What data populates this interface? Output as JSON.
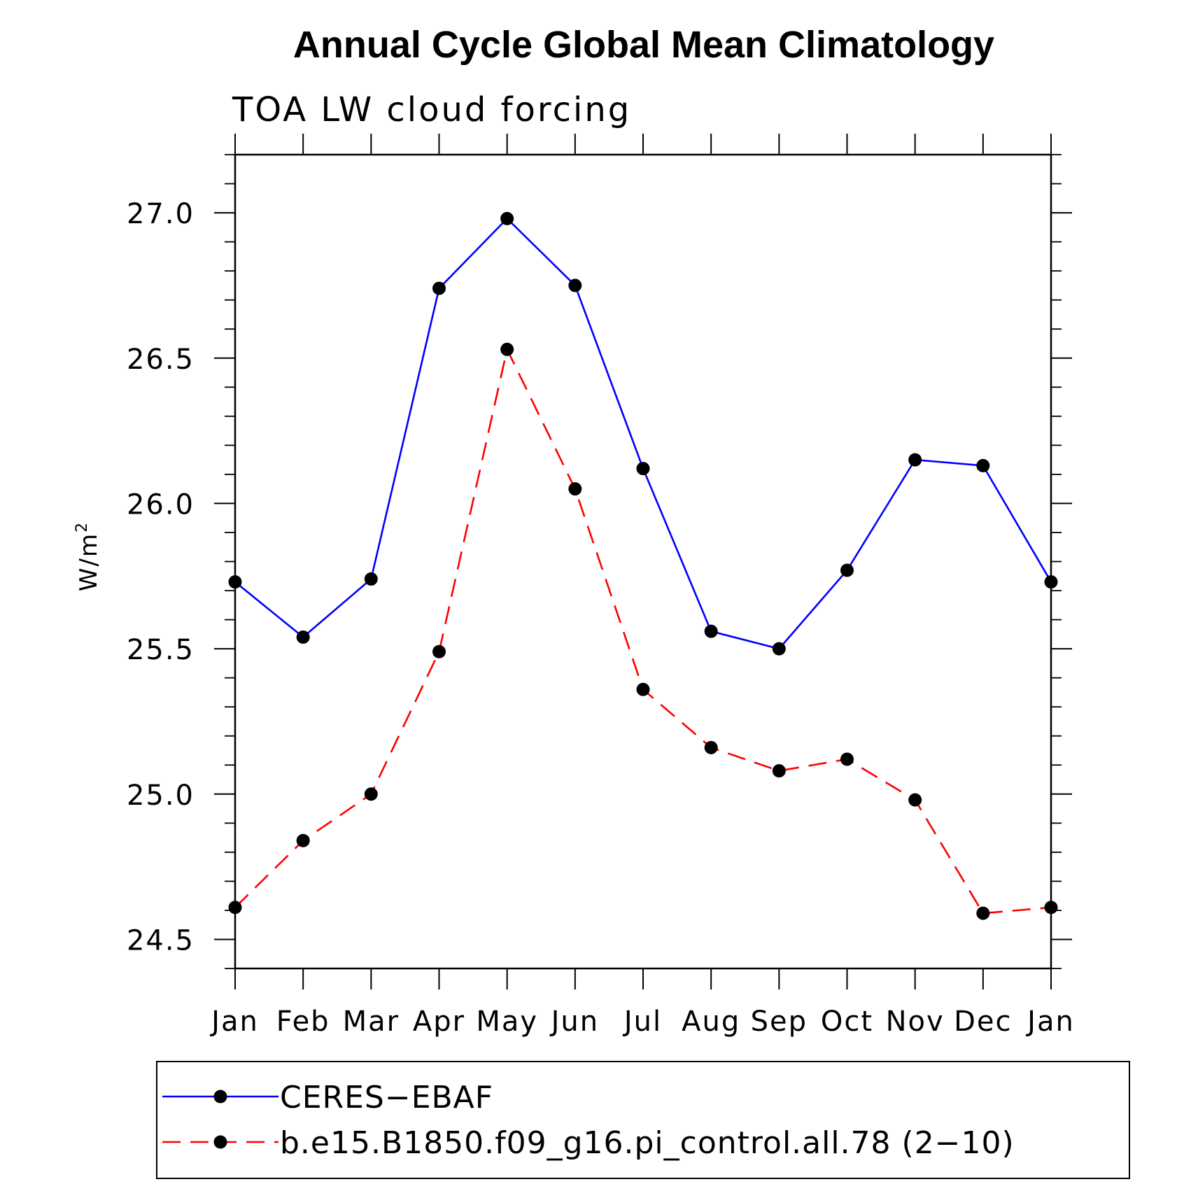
{
  "chart_data": {
    "type": "line",
    "title": "Annual Cycle Global Mean Climatology",
    "subtitle": "TOA LW cloud forcing",
    "ylabel": "W/m",
    "ylabel_sup": "2",
    "xlabel": "",
    "categories": [
      "Jan",
      "Feb",
      "Mar",
      "Apr",
      "May",
      "Jun",
      "Jul",
      "Aug",
      "Sep",
      "Oct",
      "Nov",
      "Dec",
      "Jan"
    ],
    "ylim": [
      24.4,
      27.2
    ],
    "yticks": [
      "24.5",
      "25.0",
      "25.5",
      "26.0",
      "26.5",
      "27.0"
    ],
    "grid": false,
    "legend_position": "bottom",
    "series": [
      {
        "name": "CERES−EBAF",
        "color": "#0000ff",
        "dash": "solid",
        "marker": "filled-circle",
        "values": [
          25.73,
          25.54,
          25.74,
          26.74,
          26.98,
          26.75,
          26.12,
          25.56,
          25.5,
          25.77,
          26.15,
          26.13,
          25.73
        ]
      },
      {
        "name": "b.e15.B1850.f09_g16.pi_control.all.78 (2−10)",
        "color": "#ff0000",
        "dash": "dashed",
        "marker": "filled-circle",
        "values": [
          24.61,
          24.84,
          25.0,
          25.49,
          26.53,
          26.05,
          25.36,
          25.16,
          25.08,
          25.12,
          24.98,
          24.59,
          24.61
        ]
      }
    ]
  }
}
